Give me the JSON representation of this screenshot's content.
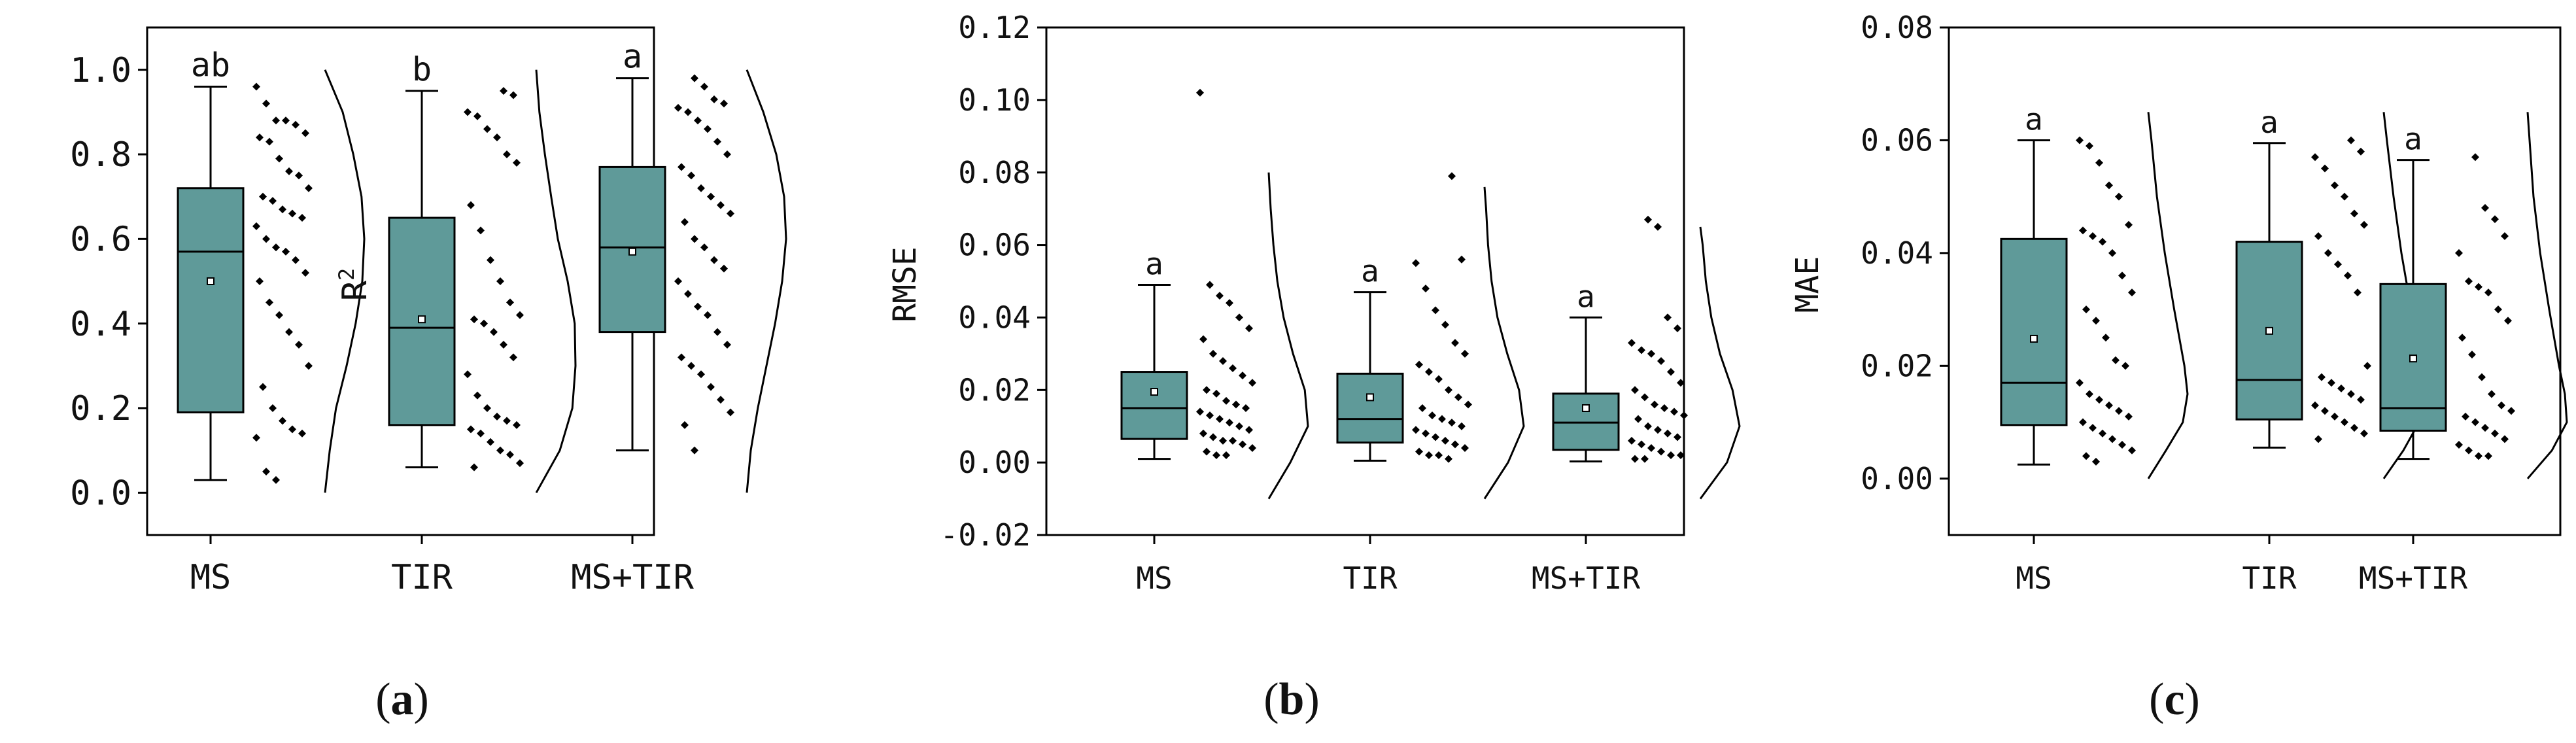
{
  "colors": {
    "box": "#5f9a99",
    "stroke": "#000000",
    "background": "#ffffff"
  },
  "chart_data": [
    {
      "type": "box",
      "panel": "(a)",
      "panel_letter": "a",
      "title": "",
      "xlabel": "",
      "ylabel": "R",
      "ylabel_sup": "2",
      "ylim": [
        -0.1,
        1.1
      ],
      "yticks": [
        0.0,
        0.2,
        0.4,
        0.6,
        0.8,
        1.0
      ],
      "ytick_labels": [
        "0.0",
        "0.2",
        "0.4",
        "0.6",
        "0.8",
        "1.0"
      ],
      "categories": [
        "MS",
        "TIR",
        "MS+TIR"
      ],
      "series": [
        {
          "name": "MS",
          "letter": "ab",
          "min": 0.03,
          "q1": 0.19,
          "median": 0.57,
          "q3": 0.72,
          "max": 0.96,
          "mean": 0.5,
          "points": [
            0.96,
            0.92,
            0.88,
            0.88,
            0.87,
            0.85,
            0.84,
            0.83,
            0.79,
            0.76,
            0.75,
            0.72,
            0.7,
            0.69,
            0.67,
            0.66,
            0.65,
            0.63,
            0.6,
            0.58,
            0.57,
            0.55,
            0.52,
            0.5,
            0.45,
            0.42,
            0.38,
            0.35,
            0.3,
            0.25,
            0.2,
            0.17,
            0.15,
            0.14,
            0.13,
            0.05,
            0.03
          ],
          "density": [
            [
              0.0,
              0.0
            ],
            [
              0.1,
              0.12
            ],
            [
              0.2,
              0.28
            ],
            [
              0.3,
              0.55
            ],
            [
              0.4,
              0.78
            ],
            [
              0.5,
              0.95
            ],
            [
              0.6,
              1.0
            ],
            [
              0.7,
              0.93
            ],
            [
              0.8,
              0.72
            ],
            [
              0.9,
              0.45
            ],
            [
              1.0,
              0.0
            ]
          ]
        },
        {
          "name": "TIR",
          "letter": "b",
          "min": 0.06,
          "q1": 0.16,
          "median": 0.39,
          "q3": 0.65,
          "max": 0.95,
          "mean": 0.41,
          "points": [
            0.95,
            0.94,
            0.9,
            0.89,
            0.86,
            0.84,
            0.8,
            0.78,
            0.68,
            0.62,
            0.55,
            0.5,
            0.45,
            0.42,
            0.41,
            0.4,
            0.38,
            0.35,
            0.32,
            0.28,
            0.23,
            0.2,
            0.18,
            0.17,
            0.16,
            0.15,
            0.14,
            0.12,
            0.1,
            0.09,
            0.07,
            0.06
          ],
          "density": [
            [
              0.0,
              0.0
            ],
            [
              0.1,
              0.6
            ],
            [
              0.2,
              0.92
            ],
            [
              0.3,
              1.0
            ],
            [
              0.4,
              0.98
            ],
            [
              0.5,
              0.8
            ],
            [
              0.6,
              0.55
            ],
            [
              0.7,
              0.38
            ],
            [
              0.8,
              0.22
            ],
            [
              0.9,
              0.08
            ],
            [
              1.0,
              0.0
            ]
          ]
        },
        {
          "name": "MS+TIR",
          "letter": "a",
          "min": 0.1,
          "q1": 0.38,
          "median": 0.58,
          "q3": 0.77,
          "max": 0.98,
          "mean": 0.57,
          "points": [
            0.98,
            0.96,
            0.93,
            0.92,
            0.91,
            0.9,
            0.88,
            0.86,
            0.83,
            0.8,
            0.77,
            0.75,
            0.72,
            0.7,
            0.68,
            0.66,
            0.64,
            0.6,
            0.58,
            0.55,
            0.53,
            0.5,
            0.47,
            0.44,
            0.42,
            0.38,
            0.35,
            0.32,
            0.3,
            0.28,
            0.25,
            0.22,
            0.19,
            0.16,
            0.1
          ],
          "density": [
            [
              0.0,
              0.0
            ],
            [
              0.1,
              0.1
            ],
            [
              0.2,
              0.28
            ],
            [
              0.3,
              0.5
            ],
            [
              0.4,
              0.72
            ],
            [
              0.5,
              0.9
            ],
            [
              0.6,
              1.0
            ],
            [
              0.7,
              0.95
            ],
            [
              0.8,
              0.75
            ],
            [
              0.9,
              0.42
            ],
            [
              1.0,
              0.0
            ]
          ]
        }
      ]
    },
    {
      "type": "box",
      "panel": "(b)",
      "panel_letter": "b",
      "title": "",
      "xlabel": "",
      "ylabel": "RMSE",
      "ylim": [
        -0.02,
        0.12
      ],
      "yticks": [
        -0.02,
        0.0,
        0.02,
        0.04,
        0.06,
        0.08,
        0.1,
        0.12
      ],
      "ytick_labels": [
        "-0.02",
        "0.00",
        "0.02",
        "0.04",
        "0.06",
        "0.08",
        "0.10",
        "0.12"
      ],
      "categories": [
        "MS",
        "TIR",
        "MS+TIR"
      ],
      "series": [
        {
          "name": "MS",
          "letter": "a",
          "min": 0.001,
          "q1": 0.0065,
          "median": 0.015,
          "q3": 0.025,
          "max": 0.049,
          "mean": 0.0195,
          "points": [
            0.102,
            0.049,
            0.046,
            0.044,
            0.04,
            0.037,
            0.034,
            0.03,
            0.028,
            0.026,
            0.024,
            0.022,
            0.02,
            0.019,
            0.017,
            0.016,
            0.015,
            0.014,
            0.013,
            0.012,
            0.011,
            0.01,
            0.009,
            0.008,
            0.007,
            0.006,
            0.006,
            0.005,
            0.004,
            0.003,
            0.002,
            0.002
          ],
          "density": [
            [
              -0.01,
              0.0
            ],
            [
              0.0,
              0.55
            ],
            [
              0.01,
              1.0
            ],
            [
              0.02,
              0.92
            ],
            [
              0.03,
              0.62
            ],
            [
              0.04,
              0.38
            ],
            [
              0.05,
              0.22
            ],
            [
              0.06,
              0.12
            ],
            [
              0.07,
              0.05
            ],
            [
              0.08,
              0.0
            ]
          ]
        },
        {
          "name": "TIR",
          "letter": "a",
          "min": 0.0005,
          "q1": 0.0055,
          "median": 0.012,
          "q3": 0.0245,
          "max": 0.047,
          "mean": 0.018,
          "points": [
            0.079,
            0.056,
            0.055,
            0.048,
            0.042,
            0.038,
            0.033,
            0.03,
            0.027,
            0.025,
            0.023,
            0.02,
            0.018,
            0.016,
            0.015,
            0.013,
            0.012,
            0.011,
            0.01,
            0.009,
            0.008,
            0.007,
            0.006,
            0.005,
            0.004,
            0.003,
            0.002,
            0.002,
            0.001
          ],
          "density": [
            [
              -0.01,
              0.0
            ],
            [
              0.0,
              0.6
            ],
            [
              0.01,
              1.0
            ],
            [
              0.02,
              0.88
            ],
            [
              0.03,
              0.58
            ],
            [
              0.04,
              0.33
            ],
            [
              0.05,
              0.18
            ],
            [
              0.06,
              0.09
            ],
            [
              0.07,
              0.04
            ],
            [
              0.076,
              0.0
            ]
          ]
        },
        {
          "name": "MS+TIR",
          "letter": "a",
          "min": 0.0003,
          "q1": 0.0035,
          "median": 0.011,
          "q3": 0.019,
          "max": 0.04,
          "mean": 0.015,
          "points": [
            0.067,
            0.065,
            0.04,
            0.037,
            0.033,
            0.031,
            0.03,
            0.028,
            0.025,
            0.022,
            0.02,
            0.018,
            0.016,
            0.015,
            0.014,
            0.013,
            0.012,
            0.01,
            0.009,
            0.008,
            0.007,
            0.006,
            0.005,
            0.004,
            0.003,
            0.002,
            0.002,
            0.001,
            0.001
          ],
          "density": [
            [
              -0.01,
              0.0
            ],
            [
              0.0,
              0.68
            ],
            [
              0.01,
              1.0
            ],
            [
              0.02,
              0.82
            ],
            [
              0.03,
              0.5
            ],
            [
              0.04,
              0.28
            ],
            [
              0.05,
              0.14
            ],
            [
              0.06,
              0.06
            ],
            [
              0.065,
              0.0
            ]
          ]
        }
      ]
    },
    {
      "type": "box",
      "panel": "(c)",
      "panel_letter": "c",
      "title": "",
      "xlabel": "",
      "ylabel": "MAE",
      "ylim": [
        -0.01,
        0.08
      ],
      "yticks": [
        0.0,
        0.02,
        0.04,
        0.06,
        0.08
      ],
      "ytick_labels": [
        "0.00",
        "0.02",
        "0.04",
        "0.06",
        "0.08"
      ],
      "categories": [
        "MS",
        "TIR",
        "MS+TIR"
      ],
      "series": [
        {
          "name": "MS",
          "letter": "a",
          "min": 0.0025,
          "q1": 0.0095,
          "median": 0.017,
          "q3": 0.0425,
          "max": 0.06,
          "mean": 0.0248,
          "points": [
            0.06,
            0.059,
            0.056,
            0.052,
            0.05,
            0.045,
            0.044,
            0.043,
            0.042,
            0.04,
            0.036,
            0.033,
            0.03,
            0.028,
            0.025,
            0.021,
            0.02,
            0.017,
            0.015,
            0.014,
            0.013,
            0.012,
            0.011,
            0.01,
            0.009,
            0.008,
            0.007,
            0.006,
            0.005,
            0.004,
            0.003
          ],
          "density": [
            [
              0.0,
              0.0
            ],
            [
              0.005,
              0.45
            ],
            [
              0.01,
              0.88
            ],
            [
              0.015,
              1.0
            ],
            [
              0.02,
              0.92
            ],
            [
              0.03,
              0.66
            ],
            [
              0.04,
              0.42
            ],
            [
              0.05,
              0.22
            ],
            [
              0.06,
              0.08
            ],
            [
              0.065,
              0.0
            ]
          ]
        },
        {
          "name": "TIR",
          "letter": "a",
          "min": 0.0055,
          "q1": 0.0105,
          "median": 0.0175,
          "q3": 0.042,
          "max": 0.0595,
          "mean": 0.0262,
          "points": [
            0.06,
            0.058,
            0.057,
            0.055,
            0.052,
            0.05,
            0.047,
            0.045,
            0.043,
            0.04,
            0.038,
            0.036,
            0.033,
            0.02,
            0.018,
            0.017,
            0.016,
            0.015,
            0.014,
            0.013,
            0.012,
            0.011,
            0.01,
            0.009,
            0.008,
            0.007
          ],
          "density": [
            [
              0.0,
              0.0
            ],
            [
              0.005,
              0.5
            ],
            [
              0.01,
              0.9
            ],
            [
              0.015,
              1.0
            ],
            [
              0.02,
              0.95
            ],
            [
              0.03,
              0.7
            ],
            [
              0.04,
              0.45
            ],
            [
              0.05,
              0.25
            ],
            [
              0.06,
              0.08
            ],
            [
              0.065,
              0.0
            ]
          ]
        },
        {
          "name": "MS+TIR",
          "letter": "a",
          "min": 0.0035,
          "q1": 0.0085,
          "median": 0.0125,
          "q3": 0.0345,
          "max": 0.0565,
          "mean": 0.0213,
          "points": [
            0.057,
            0.048,
            0.046,
            0.043,
            0.04,
            0.035,
            0.034,
            0.033,
            0.03,
            0.028,
            0.025,
            0.022,
            0.018,
            0.015,
            0.013,
            0.012,
            0.011,
            0.01,
            0.009,
            0.008,
            0.007,
            0.006,
            0.005,
            0.004,
            0.004
          ],
          "density": [
            [
              0.0,
              0.0
            ],
            [
              0.005,
              0.62
            ],
            [
              0.01,
              1.0
            ],
            [
              0.015,
              0.95
            ],
            [
              0.02,
              0.8
            ],
            [
              0.03,
              0.55
            ],
            [
              0.04,
              0.32
            ],
            [
              0.05,
              0.15
            ],
            [
              0.06,
              0.05
            ],
            [
              0.065,
              0.0
            ]
          ]
        }
      ]
    }
  ]
}
